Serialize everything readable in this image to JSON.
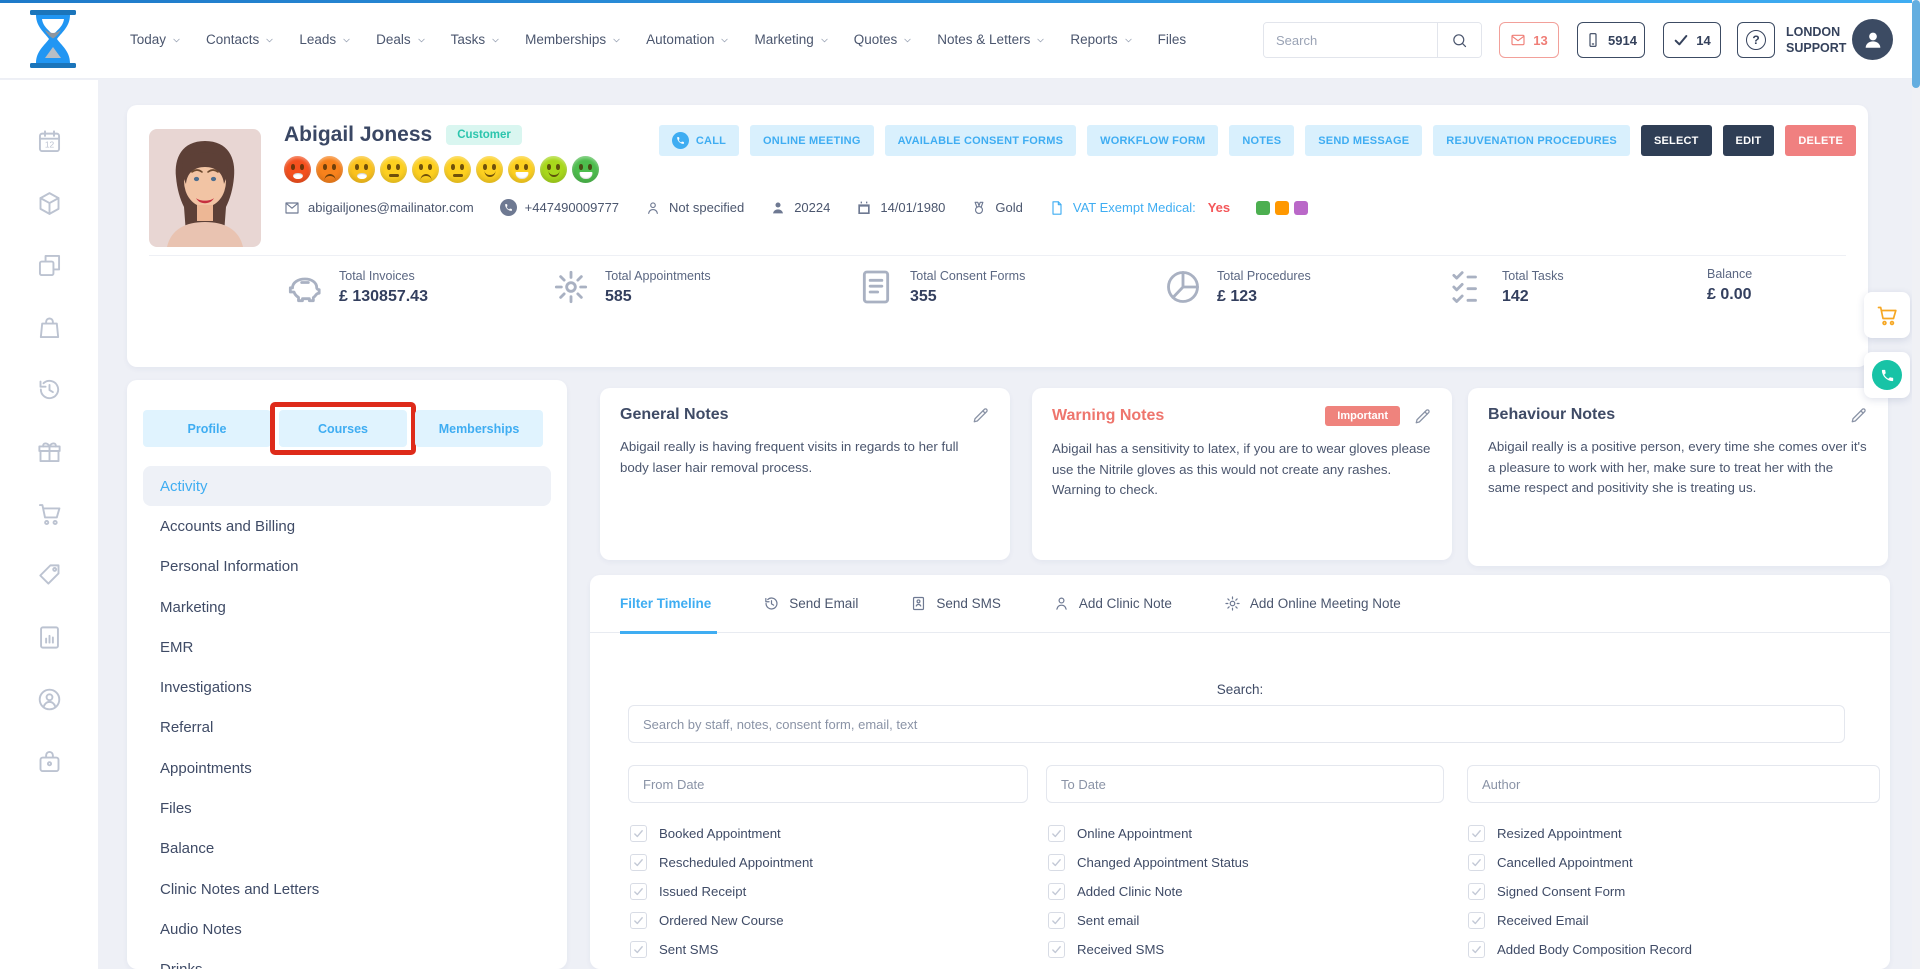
{
  "nav": {
    "items": [
      {
        "label": "Today",
        "chevron": true
      },
      {
        "label": "Contacts",
        "chevron": true
      },
      {
        "label": "Leads",
        "chevron": true
      },
      {
        "label": "Deals",
        "chevron": true
      },
      {
        "label": "Tasks",
        "chevron": true
      },
      {
        "label": "Memberships",
        "chevron": true
      },
      {
        "label": "Automation",
        "chevron": true
      },
      {
        "label": "Marketing",
        "chevron": true
      },
      {
        "label": "Quotes",
        "chevron": true
      },
      {
        "label": "Notes & Letters",
        "chevron": true
      },
      {
        "label": "Reports",
        "chevron": true
      },
      {
        "label": "Files",
        "chevron": false
      }
    ],
    "search_placeholder": "Search",
    "counters": {
      "messages": "13",
      "sms_credits": "5914",
      "tasks": "14"
    },
    "help_label": "?",
    "account_label": "LONDON SUPPORT"
  },
  "sidebar": {
    "icons": [
      "calendar",
      "products",
      "duplicates",
      "bag",
      "history",
      "gift",
      "cart",
      "tag",
      "report",
      "support",
      "security"
    ]
  },
  "patient": {
    "name": "Abigail Joness",
    "status_badge": "Customer",
    "email": "abigailjones@mailinator.com",
    "phone": "+447490009777",
    "gender": "Not specified",
    "patient_id": "20224",
    "dob": "14/01/1980",
    "tier": "Gold",
    "vat_label": "VAT Exempt Medical:",
    "vat_value": "Yes",
    "tag_colors": [
      "#4caf50",
      "#ff9800",
      "#ba68c8"
    ],
    "mood_scale": [
      {
        "color": "#f4501e",
        "mouth": "open-frown"
      },
      {
        "color": "#f8821c",
        "mouth": "frown"
      },
      {
        "color": "#fbc21d",
        "mouth": "open-frown"
      },
      {
        "color": "#fdd020",
        "mouth": "neutral"
      },
      {
        "color": "#fdd020",
        "mouth": "frown"
      },
      {
        "color": "#fdd020",
        "mouth": "neutral"
      },
      {
        "color": "#fdd020",
        "mouth": "smile"
      },
      {
        "color": "#fdd020",
        "mouth": "open-smile"
      },
      {
        "color": "#a8d81c",
        "mouth": "smile"
      },
      {
        "color": "#4dbd4d",
        "mouth": "open-smile"
      }
    ]
  },
  "actions": {
    "buttons": [
      {
        "label": "CALL",
        "variant": "light",
        "icon": "phonecall"
      },
      {
        "label": "ONLINE MEETING",
        "variant": "light"
      },
      {
        "label": "AVAILABLE CONSENT FORMS",
        "variant": "light"
      },
      {
        "label": "WORKFLOW FORM",
        "variant": "light"
      },
      {
        "label": "NOTES",
        "variant": "light"
      },
      {
        "label": "SEND MESSAGE",
        "variant": "light"
      },
      {
        "label": "REJUVENATION PROCEDURES",
        "variant": "light"
      },
      {
        "label": "SELECT",
        "variant": "dark"
      },
      {
        "label": "EDIT",
        "variant": "dark"
      },
      {
        "label": "DELETE",
        "variant": "danger"
      }
    ]
  },
  "stats": [
    {
      "label": "Total Invoices",
      "value": "£ 130857.43",
      "icon": "piggy"
    },
    {
      "label": "Total Appointments",
      "value": "585",
      "icon": "burst"
    },
    {
      "label": "Total Consent Forms",
      "value": "355",
      "icon": "docform"
    },
    {
      "label": "Total Procedures",
      "value": "£ 123",
      "icon": "pie"
    },
    {
      "label": "Total Tasks",
      "value": "142",
      "icon": "checklist"
    },
    {
      "label": "Balance",
      "value": "£ 0.00",
      "icon": ""
    }
  ],
  "profile_panel": {
    "tabs": [
      {
        "label": "Profile",
        "highlighted": false
      },
      {
        "label": "Courses",
        "highlighted": true
      },
      {
        "label": "Memberships",
        "highlighted": false
      }
    ],
    "menu": [
      {
        "label": "Activity",
        "active": true
      },
      {
        "label": "Accounts and Billing",
        "active": false
      },
      {
        "label": "Personal Information",
        "active": false
      },
      {
        "label": "Marketing",
        "active": false
      },
      {
        "label": "EMR",
        "active": false
      },
      {
        "label": "Investigations",
        "active": false
      },
      {
        "label": "Referral",
        "active": false
      },
      {
        "label": "Appointments",
        "active": false
      },
      {
        "label": "Files",
        "active": false
      },
      {
        "label": "Balance",
        "active": false
      },
      {
        "label": "Clinic Notes and Letters",
        "active": false
      },
      {
        "label": "Audio Notes",
        "active": false
      },
      {
        "label": "Drinks",
        "active": false
      }
    ]
  },
  "notes_cards": [
    {
      "title": "General Notes",
      "tone": "normal",
      "badge": "",
      "text": "Abigail really is having frequent visits in regards to her full body laser hair removal process."
    },
    {
      "title": "Warning Notes",
      "tone": "warning",
      "badge": "Important",
      "text": "Abigail has a sensitivity to latex, if you are to wear gloves please use the Nitrile gloves as this would not create any rashes. Warning to check."
    },
    {
      "title": "Behaviour Notes",
      "tone": "normal",
      "badge": "",
      "text": "Abigail really is a positive person, every time she comes over it's a pleasure to work with her, make sure to treat her with the same respect and positivity she is treating us."
    }
  ],
  "timeline": {
    "tabs": [
      {
        "label": "Filter Timeline",
        "active": true,
        "icon": ""
      },
      {
        "label": "Send Email",
        "active": false,
        "icon": "historyclock"
      },
      {
        "label": "Send SMS",
        "active": false,
        "icon": "smscard"
      },
      {
        "label": "Add Clinic Note",
        "active": false,
        "icon": "person"
      },
      {
        "label": "Add Online Meeting Note",
        "active": false,
        "icon": "gear"
      }
    ],
    "search_label": "Search:",
    "search_placeholder": "Search by staff, notes, consent form, email, text",
    "fields": [
      {
        "placeholder": "From Date"
      },
      {
        "placeholder": "To Date"
      },
      {
        "placeholder": "Author"
      }
    ],
    "filter_columns": [
      [
        "Booked Appointment",
        "Rescheduled Appointment",
        "Issued Receipt",
        "Ordered New Course",
        "Sent SMS"
      ],
      [
        "Online Appointment",
        "Changed Appointment Status",
        "Added Clinic Note",
        "Sent email",
        "Received SMS"
      ],
      [
        "Resized Appointment",
        "Cancelled Appointment",
        "Signed Consent Form",
        "Received Email",
        "Added Body Composition Record"
      ]
    ],
    "all_checked": true
  },
  "annotation": {
    "highlight_color": "#de2b1a"
  }
}
